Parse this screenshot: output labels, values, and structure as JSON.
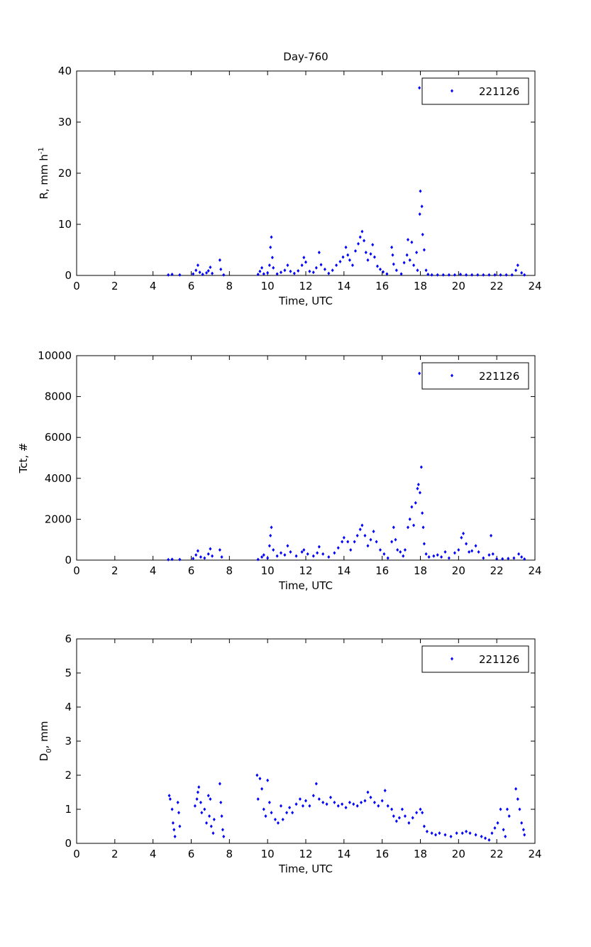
{
  "figure_title": "Day-760",
  "chart_data": [
    {
      "type": "scatter",
      "title": "Day-760",
      "xlabel": "Time, UTC",
      "ylabel": "R, mm h",
      "ylabel_sup": "-1",
      "ylabel_sub": "",
      "xlim": [
        0,
        24
      ],
      "ylim": [
        0,
        40
      ],
      "xticks": [
        0,
        2,
        4,
        6,
        8,
        10,
        12,
        14,
        16,
        18,
        20,
        22,
        24
      ],
      "yticks": [
        0,
        10,
        20,
        30,
        40
      ],
      "legend": {
        "label": "221126",
        "placement": "top-right"
      },
      "color": "#0000ff",
      "points": [
        [
          4.8,
          0.1
        ],
        [
          5.0,
          0.2
        ],
        [
          5.4,
          0.1
        ],
        [
          6.1,
          0.3
        ],
        [
          6.25,
          1.0
        ],
        [
          6.35,
          2.0
        ],
        [
          6.45,
          0.6
        ],
        [
          6.6,
          0.2
        ],
        [
          6.8,
          0.5
        ],
        [
          6.9,
          0.9
        ],
        [
          7.0,
          1.6
        ],
        [
          7.1,
          0.4
        ],
        [
          7.5,
          3.0
        ],
        [
          7.55,
          1.2
        ],
        [
          7.7,
          0.1
        ],
        [
          9.5,
          0.2
        ],
        [
          9.6,
          0.8
        ],
        [
          9.7,
          1.5
        ],
        [
          9.8,
          0.3
        ],
        [
          10.0,
          0.5
        ],
        [
          10.1,
          2.0
        ],
        [
          10.15,
          5.5
        ],
        [
          10.2,
          7.5
        ],
        [
          10.25,
          3.5
        ],
        [
          10.3,
          1.5
        ],
        [
          10.5,
          0.3
        ],
        [
          10.7,
          0.6
        ],
        [
          10.9,
          1.0
        ],
        [
          11.05,
          2.0
        ],
        [
          11.2,
          0.8
        ],
        [
          11.4,
          0.4
        ],
        [
          11.6,
          0.9
        ],
        [
          11.8,
          2.0
        ],
        [
          11.9,
          3.5
        ],
        [
          12.0,
          2.6
        ],
        [
          12.2,
          0.8
        ],
        [
          12.4,
          0.6
        ],
        [
          12.55,
          1.5
        ],
        [
          12.7,
          4.5
        ],
        [
          12.8,
          2.1
        ],
        [
          13.0,
          1.2
        ],
        [
          13.2,
          0.4
        ],
        [
          13.4,
          1.0
        ],
        [
          13.6,
          2.0
        ],
        [
          13.8,
          2.7
        ],
        [
          13.95,
          3.6
        ],
        [
          14.1,
          5.5
        ],
        [
          14.2,
          4.0
        ],
        [
          14.3,
          3.0
        ],
        [
          14.45,
          2.0
        ],
        [
          14.6,
          4.8
        ],
        [
          14.75,
          6.2
        ],
        [
          14.85,
          7.5
        ],
        [
          14.95,
          8.6
        ],
        [
          15.05,
          6.8
        ],
        [
          15.15,
          4.5
        ],
        [
          15.25,
          3.0
        ],
        [
          15.4,
          4.2
        ],
        [
          15.5,
          6.0
        ],
        [
          15.6,
          3.6
        ],
        [
          15.75,
          1.8
        ],
        [
          15.9,
          1.2
        ],
        [
          16.05,
          0.7
        ],
        [
          16.25,
          0.3
        ],
        [
          16.5,
          5.5
        ],
        [
          16.55,
          4.0
        ],
        [
          16.6,
          2.2
        ],
        [
          16.75,
          1.0
        ],
        [
          17.0,
          0.3
        ],
        [
          17.15,
          2.5
        ],
        [
          17.3,
          4.0
        ],
        [
          17.35,
          7.0
        ],
        [
          17.45,
          3.0
        ],
        [
          17.55,
          6.5
        ],
        [
          17.65,
          2.0
        ],
        [
          17.8,
          4.5
        ],
        [
          17.85,
          1.0
        ],
        [
          17.95,
          36.7
        ],
        [
          17.97,
          12.0
        ],
        [
          18.0,
          16.5
        ],
        [
          18.08,
          13.5
        ],
        [
          18.12,
          8.0
        ],
        [
          18.2,
          5.0
        ],
        [
          18.3,
          1.0
        ],
        [
          18.4,
          0.2
        ],
        [
          18.6,
          0.1
        ],
        [
          18.9,
          0.1
        ],
        [
          19.2,
          0.1
        ],
        [
          19.5,
          0.1
        ],
        [
          19.8,
          0.1
        ],
        [
          20.1,
          0.2
        ],
        [
          20.4,
          0.1
        ],
        [
          20.7,
          0.1
        ],
        [
          21.0,
          0.1
        ],
        [
          21.3,
          0.1
        ],
        [
          21.6,
          0.1
        ],
        [
          21.9,
          0.1
        ],
        [
          22.2,
          0.1
        ],
        [
          22.5,
          0.1
        ],
        [
          22.8,
          0.1
        ],
        [
          23.0,
          1.0
        ],
        [
          23.1,
          2.0
        ],
        [
          23.3,
          0.5
        ],
        [
          23.45,
          0.1
        ]
      ]
    },
    {
      "type": "scatter",
      "title": "",
      "xlabel": "Time, UTC",
      "ylabel": "Tct, #",
      "ylabel_sup": "",
      "ylabel_sub": "",
      "xlim": [
        0,
        24
      ],
      "ylim": [
        0,
        10000
      ],
      "xticks": [
        0,
        2,
        4,
        6,
        8,
        10,
        12,
        14,
        16,
        18,
        20,
        22,
        24
      ],
      "yticks": [
        0,
        2000,
        4000,
        6000,
        8000,
        10000
      ],
      "legend": {
        "label": "221126",
        "placement": "top-right"
      },
      "color": "#0000ff",
      "points": [
        [
          4.8,
          20
        ],
        [
          5.0,
          40
        ],
        [
          5.4,
          30
        ],
        [
          6.1,
          80
        ],
        [
          6.25,
          250
        ],
        [
          6.35,
          450
        ],
        [
          6.5,
          150
        ],
        [
          6.7,
          100
        ],
        [
          6.9,
          300
        ],
        [
          7.0,
          550
        ],
        [
          7.1,
          200
        ],
        [
          7.5,
          500
        ],
        [
          7.6,
          150
        ],
        [
          9.5,
          30
        ],
        [
          9.7,
          150
        ],
        [
          9.8,
          250
        ],
        [
          10.0,
          100
        ],
        [
          10.1,
          700
        ],
        [
          10.15,
          1200
        ],
        [
          10.2,
          1600
        ],
        [
          10.3,
          500
        ],
        [
          10.5,
          200
        ],
        [
          10.7,
          350
        ],
        [
          10.9,
          250
        ],
        [
          11.05,
          700
        ],
        [
          11.2,
          400
        ],
        [
          11.5,
          200
        ],
        [
          11.8,
          400
        ],
        [
          11.9,
          500
        ],
        [
          12.1,
          300
        ],
        [
          12.4,
          200
        ],
        [
          12.6,
          350
        ],
        [
          12.7,
          650
        ],
        [
          12.9,
          300
        ],
        [
          13.2,
          150
        ],
        [
          13.5,
          350
        ],
        [
          13.7,
          600
        ],
        [
          13.9,
          900
        ],
        [
          14.0,
          1100
        ],
        [
          14.2,
          900
        ],
        [
          14.35,
          500
        ],
        [
          14.55,
          900
        ],
        [
          14.7,
          1200
        ],
        [
          14.85,
          1500
        ],
        [
          14.95,
          1700
        ],
        [
          15.1,
          1200
        ],
        [
          15.25,
          700
        ],
        [
          15.4,
          1000
        ],
        [
          15.55,
          1400
        ],
        [
          15.7,
          900
        ],
        [
          15.9,
          500
        ],
        [
          16.1,
          300
        ],
        [
          16.3,
          100
        ],
        [
          16.5,
          900
        ],
        [
          16.6,
          1600
        ],
        [
          16.7,
          1000
        ],
        [
          16.8,
          500
        ],
        [
          16.95,
          400
        ],
        [
          17.1,
          200
        ],
        [
          17.2,
          500
        ],
        [
          17.35,
          1600
        ],
        [
          17.45,
          2000
        ],
        [
          17.55,
          2600
        ],
        [
          17.65,
          1700
        ],
        [
          17.75,
          2800
        ],
        [
          17.85,
          3500
        ],
        [
          17.9,
          3700
        ],
        [
          17.95,
          9130
        ],
        [
          17.98,
          3300
        ],
        [
          18.05,
          4550
        ],
        [
          18.1,
          2300
        ],
        [
          18.15,
          1600
        ],
        [
          18.2,
          800
        ],
        [
          18.3,
          300
        ],
        [
          18.45,
          150
        ],
        [
          18.7,
          200
        ],
        [
          18.9,
          250
        ],
        [
          19.1,
          150
        ],
        [
          19.3,
          400
        ],
        [
          19.5,
          100
        ],
        [
          19.8,
          350
        ],
        [
          20.0,
          500
        ],
        [
          20.15,
          1100
        ],
        [
          20.25,
          1300
        ],
        [
          20.4,
          800
        ],
        [
          20.55,
          400
        ],
        [
          20.7,
          450
        ],
        [
          20.9,
          700
        ],
        [
          21.05,
          400
        ],
        [
          21.3,
          100
        ],
        [
          21.6,
          250
        ],
        [
          21.7,
          1200
        ],
        [
          21.8,
          300
        ],
        [
          22.0,
          60
        ],
        [
          22.3,
          60
        ],
        [
          22.6,
          80
        ],
        [
          22.9,
          100
        ],
        [
          23.15,
          300
        ],
        [
          23.3,
          150
        ],
        [
          23.45,
          50
        ]
      ]
    },
    {
      "type": "scatter",
      "title": "",
      "xlabel": "Time, UTC",
      "ylabel": "D",
      "ylabel_sup": "",
      "ylabel_sub": "0",
      "ylabel_suffix": ", mm",
      "xlim": [
        0,
        24
      ],
      "ylim": [
        0,
        6
      ],
      "xticks": [
        0,
        2,
        4,
        6,
        8,
        10,
        12,
        14,
        16,
        18,
        20,
        22,
        24
      ],
      "yticks": [
        0,
        1,
        2,
        3,
        4,
        5,
        6
      ],
      "legend": {
        "label": "221126",
        "placement": "top-right"
      },
      "color": "#0000ff",
      "points": [
        [
          4.85,
          1.4
        ],
        [
          4.9,
          1.3
        ],
        [
          5.0,
          1.0
        ],
        [
          5.05,
          0.6
        ],
        [
          5.1,
          0.4
        ],
        [
          5.15,
          0.2
        ],
        [
          5.3,
          1.2
        ],
        [
          5.35,
          0.9
        ],
        [
          5.4,
          0.5
        ],
        [
          6.2,
          1.1
        ],
        [
          6.3,
          1.3
        ],
        [
          6.35,
          1.5
        ],
        [
          6.4,
          1.65
        ],
        [
          6.5,
          1.2
        ],
        [
          6.55,
          0.9
        ],
        [
          6.7,
          1.0
        ],
        [
          6.8,
          0.6
        ],
        [
          6.9,
          1.4
        ],
        [
          6.95,
          0.8
        ],
        [
          7.0,
          1.3
        ],
        [
          7.05,
          0.5
        ],
        [
          7.15,
          0.3
        ],
        [
          7.2,
          0.7
        ],
        [
          7.5,
          1.75
        ],
        [
          7.55,
          1.2
        ],
        [
          7.6,
          0.8
        ],
        [
          7.65,
          0.4
        ],
        [
          7.7,
          0.2
        ],
        [
          9.45,
          2.0
        ],
        [
          9.5,
          1.3
        ],
        [
          9.6,
          1.9
        ],
        [
          9.7,
          1.6
        ],
        [
          9.8,
          1.0
        ],
        [
          9.9,
          0.8
        ],
        [
          10.0,
          1.85
        ],
        [
          10.1,
          1.2
        ],
        [
          10.2,
          0.9
        ],
        [
          10.4,
          0.7
        ],
        [
          10.55,
          0.6
        ],
        [
          10.7,
          1.1
        ],
        [
          10.8,
          0.7
        ],
        [
          11.0,
          0.9
        ],
        [
          11.15,
          1.05
        ],
        [
          11.3,
          0.9
        ],
        [
          11.5,
          1.15
        ],
        [
          11.7,
          1.3
        ],
        [
          11.85,
          1.1
        ],
        [
          12.0,
          1.25
        ],
        [
          12.2,
          1.1
        ],
        [
          12.4,
          1.4
        ],
        [
          12.55,
          1.75
        ],
        [
          12.7,
          1.3
        ],
        [
          12.9,
          1.2
        ],
        [
          13.1,
          1.15
        ],
        [
          13.3,
          1.35
        ],
        [
          13.5,
          1.2
        ],
        [
          13.7,
          1.1
        ],
        [
          13.9,
          1.15
        ],
        [
          14.1,
          1.05
        ],
        [
          14.3,
          1.2
        ],
        [
          14.5,
          1.15
        ],
        [
          14.7,
          1.1
        ],
        [
          14.9,
          1.2
        ],
        [
          15.1,
          1.25
        ],
        [
          15.25,
          1.5
        ],
        [
          15.4,
          1.35
        ],
        [
          15.6,
          1.2
        ],
        [
          15.8,
          1.1
        ],
        [
          16.0,
          1.25
        ],
        [
          16.15,
          1.55
        ],
        [
          16.3,
          1.1
        ],
        [
          16.5,
          1.0
        ],
        [
          16.6,
          0.8
        ],
        [
          16.75,
          0.65
        ],
        [
          16.9,
          0.75
        ],
        [
          17.05,
          1.0
        ],
        [
          17.2,
          0.8
        ],
        [
          17.4,
          0.6
        ],
        [
          17.6,
          0.75
        ],
        [
          17.8,
          0.9
        ],
        [
          18.0,
          1.0
        ],
        [
          18.1,
          0.9
        ],
        [
          18.2,
          0.5
        ],
        [
          18.35,
          0.35
        ],
        [
          18.6,
          0.3
        ],
        [
          18.8,
          0.25
        ],
        [
          19.0,
          0.3
        ],
        [
          19.3,
          0.25
        ],
        [
          19.6,
          0.2
        ],
        [
          19.9,
          0.3
        ],
        [
          20.2,
          0.3
        ],
        [
          20.4,
          0.35
        ],
        [
          20.6,
          0.3
        ],
        [
          20.9,
          0.25
        ],
        [
          21.2,
          0.2
        ],
        [
          21.4,
          0.15
        ],
        [
          21.6,
          0.1
        ],
        [
          21.75,
          0.3
        ],
        [
          21.9,
          0.45
        ],
        [
          22.05,
          0.6
        ],
        [
          22.2,
          1.0
        ],
        [
          22.35,
          0.4
        ],
        [
          22.45,
          0.2
        ],
        [
          22.55,
          1.0
        ],
        [
          22.65,
          0.8
        ],
        [
          23.0,
          1.6
        ],
        [
          23.1,
          1.3
        ],
        [
          23.2,
          1.0
        ],
        [
          23.3,
          0.6
        ],
        [
          23.4,
          0.4
        ],
        [
          23.45,
          0.25
        ]
      ]
    }
  ]
}
